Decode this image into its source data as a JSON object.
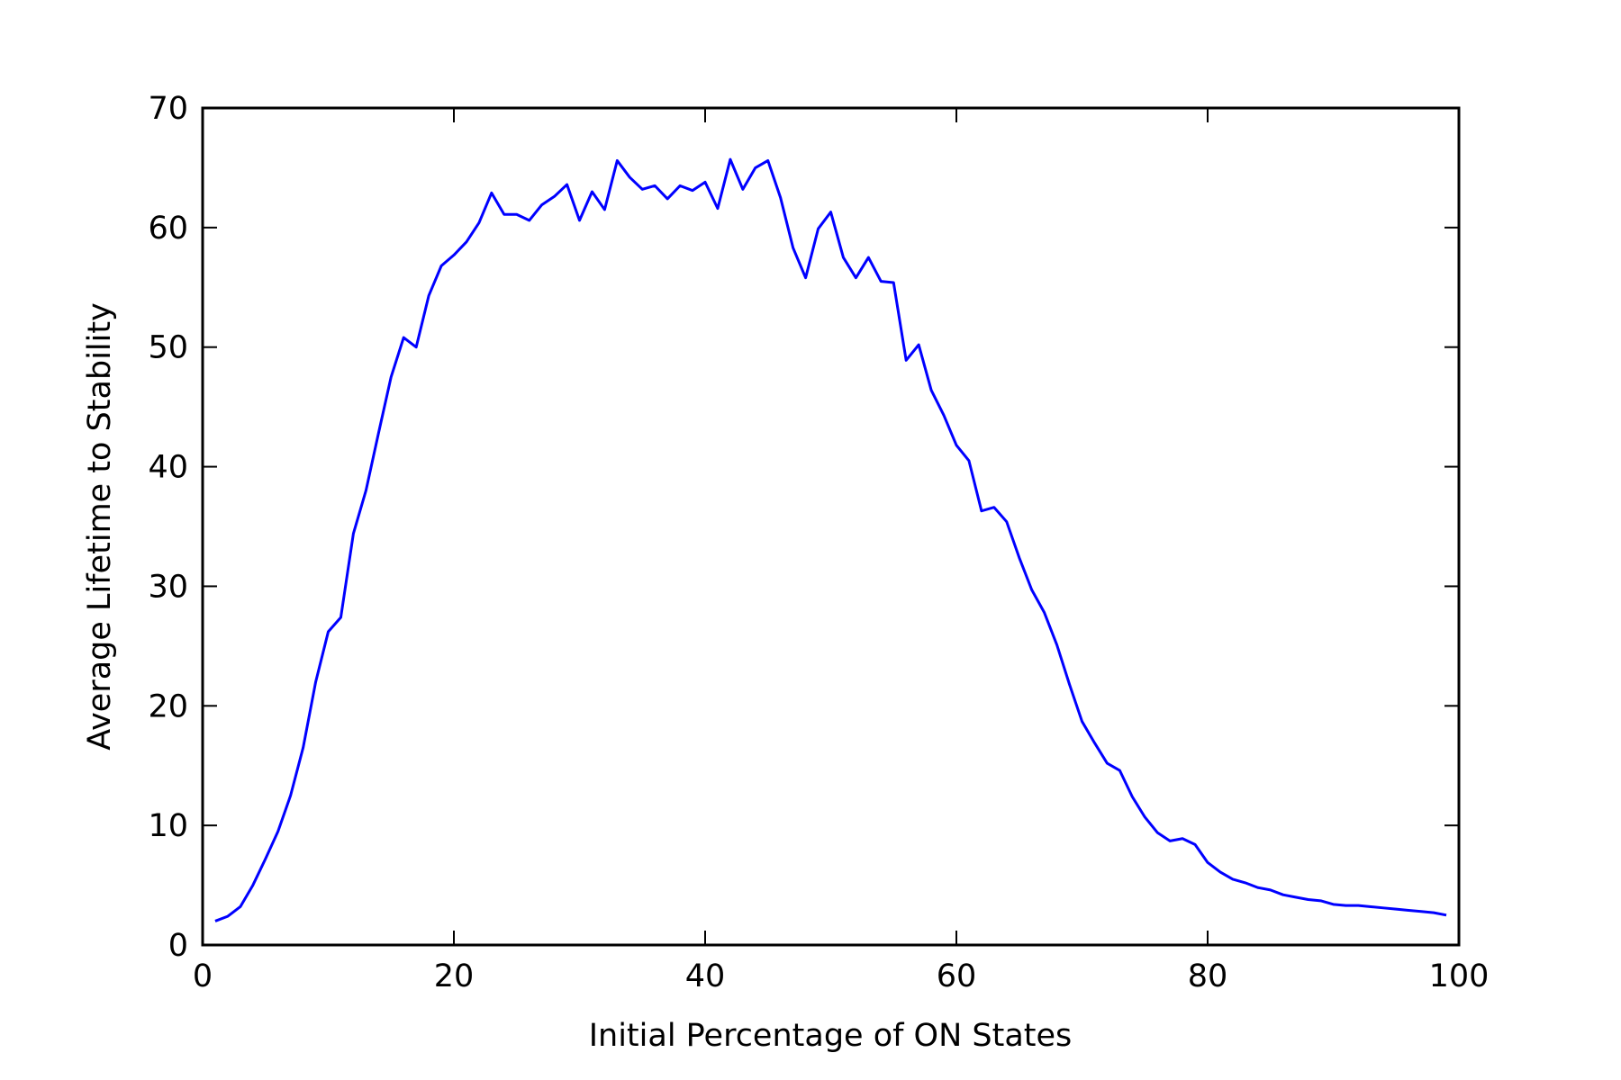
{
  "chart_data": {
    "type": "line",
    "title": "",
    "xlabel": "Initial Percentage of ON States",
    "ylabel": "Average Lifetime to Stability",
    "xlim": [
      0,
      100
    ],
    "ylim": [
      0,
      70
    ],
    "grid": false,
    "x_ticks": [
      0,
      20,
      40,
      60,
      80,
      100
    ],
    "y_ticks": [
      0,
      10,
      20,
      30,
      40,
      50,
      60,
      70
    ],
    "x_tick_labels": [
      "0",
      "20",
      "40",
      "60",
      "80",
      "100"
    ],
    "y_tick_labels": [
      "0",
      "10",
      "20",
      "30",
      "40",
      "50",
      "60",
      "70"
    ],
    "series": [
      {
        "color": "#0000ff",
        "x": [
          1,
          2,
          3,
          4,
          5,
          6,
          7,
          8,
          9,
          10,
          11,
          12,
          13,
          14,
          15,
          16,
          17,
          18,
          19,
          20,
          21,
          22,
          23,
          24,
          25,
          26,
          27,
          28,
          29,
          30,
          31,
          32,
          33,
          34,
          35,
          36,
          37,
          38,
          39,
          40,
          41,
          42,
          43,
          44,
          45,
          46,
          47,
          48,
          49,
          50,
          51,
          52,
          53,
          54,
          55,
          56,
          57,
          58,
          59,
          60,
          61,
          62,
          63,
          64,
          65,
          66,
          67,
          68,
          69,
          70,
          71,
          72,
          73,
          74,
          75,
          76,
          77,
          78,
          79,
          80,
          81,
          82,
          83,
          84,
          85,
          86,
          87,
          88,
          89,
          90,
          91,
          92,
          93,
          94,
          95,
          96,
          97,
          98,
          99
        ],
        "y": [
          2.0,
          2.4,
          3.2,
          5.0,
          7.2,
          9.5,
          12.5,
          16.5,
          22.0,
          26.2,
          27.4,
          34.4,
          38.0,
          42.8,
          47.5,
          50.8,
          50.0,
          54.3,
          56.8,
          57.7,
          58.8,
          60.4,
          62.9,
          61.1,
          61.1,
          60.6,
          61.9,
          62.6,
          63.6,
          60.6,
          63.0,
          61.5,
          65.6,
          64.2,
          63.2,
          63.5,
          62.4,
          63.5,
          63.1,
          63.8,
          61.6,
          65.7,
          63.2,
          65.0,
          65.6,
          62.5,
          58.3,
          55.8,
          59.9,
          61.3,
          57.5,
          55.8,
          57.5,
          55.5,
          55.4,
          48.9,
          50.2,
          46.4,
          44.3,
          41.8,
          40.5,
          36.3,
          36.6,
          35.4,
          32.4,
          29.7,
          27.8,
          25.1,
          21.8,
          18.7,
          16.9,
          15.2,
          14.6,
          12.4,
          10.7,
          9.4,
          8.7,
          8.9,
          8.4,
          6.9,
          6.1,
          5.5,
          5.2,
          4.8,
          4.6,
          4.2,
          4.0,
          3.8,
          3.7,
          3.4,
          3.3,
          3.3,
          3.2,
          3.1,
          3.0,
          2.9,
          2.8,
          2.7,
          2.5
        ]
      }
    ]
  }
}
